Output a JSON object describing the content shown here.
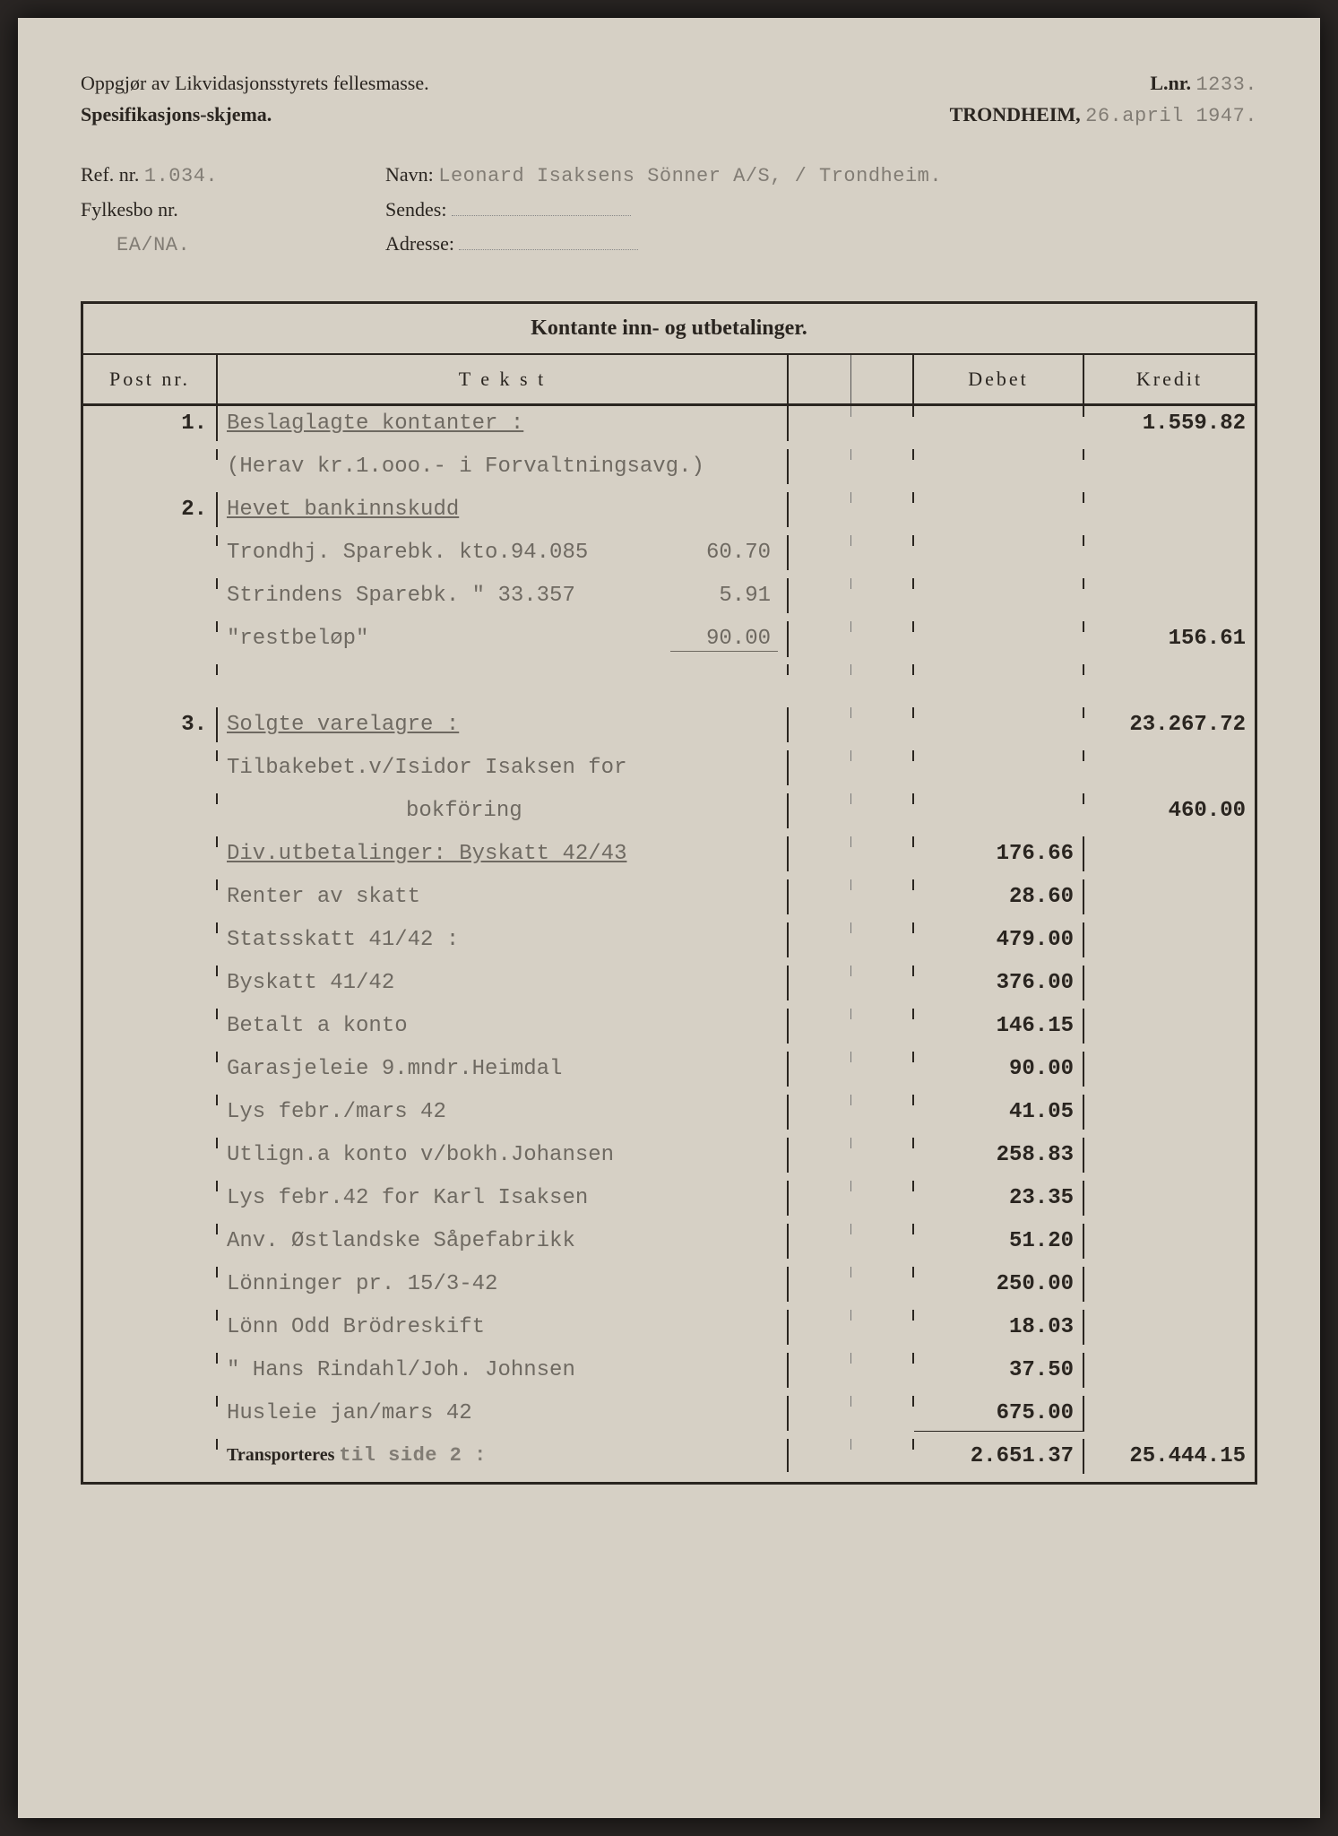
{
  "header": {
    "line1_left": "Oppgjør av Likvidasjonsstyrets fellesmasse.",
    "lnr_label": "L.nr.",
    "lnr_value": "1233.",
    "line2_left": "Spesifikasjons-skjema.",
    "city": "TRONDHEIM,",
    "date": "26.april 1947."
  },
  "ref": {
    "refnr_label": "Ref. nr.",
    "refnr_value": "1.034.",
    "navn_label": "Navn:",
    "navn_value": "Leonard Isaksens Sönner A/S, / Trondheim.",
    "fylkesbo_label": "Fylkesbo nr.",
    "fylkesbo_value": "EA/NA.",
    "sendes_label": "Sendes:",
    "adresse_label": "Adresse:"
  },
  "ledger": {
    "title": "Kontante inn- og utbetalinger.",
    "col_post": "Post nr.",
    "col_tekst": "T e k s t",
    "col_debet": "Debet",
    "col_kredit": "Kredit",
    "rows": [
      {
        "post": "1.",
        "tekst": "Beslaglagte kontanter :",
        "underline": true,
        "debet": "",
        "kredit": "1.559.82"
      },
      {
        "post": "",
        "tekst": "(Herav kr.1.ooo.- i Forvaltningsavg.)",
        "debet": "",
        "kredit": ""
      },
      {
        "post": "2.",
        "tekst": "Hevet bankinnskudd",
        "underline": true,
        "debet": "",
        "kredit": ""
      },
      {
        "post": "",
        "tekst": "Trondhj. Sparebk. kto.94.085",
        "subnum": "60.70",
        "debet": "",
        "kredit": ""
      },
      {
        "post": "",
        "tekst": "Strindens Sparebk. \" 33.357",
        "subnum": "5.91",
        "debet": "",
        "kredit": ""
      },
      {
        "post": "",
        "tekst": "\"restbeløp\"",
        "subnum": "90.00",
        "sum_underline": true,
        "debet": "",
        "kredit": "156.61"
      },
      {
        "post": "",
        "tekst": "",
        "debet": "",
        "kredit": ""
      },
      {
        "post": "3.",
        "tekst": "Solgte varelagre :",
        "underline": true,
        "debet": "",
        "kredit": "23.267.72"
      },
      {
        "post": "",
        "tekst": "Tilbakebet.v/Isidor Isaksen for",
        "debet": "",
        "kredit": ""
      },
      {
        "post": "",
        "tekst": "bokföring",
        "indent": 2,
        "debet": "",
        "kredit": "460.00"
      },
      {
        "post": "",
        "tekst": "Div.utbetalinger: Byskatt 42/43",
        "underline": true,
        "debet": "176.66",
        "kredit": ""
      },
      {
        "post": "",
        "tekst": "Renter av skatt",
        "debet": "28.60",
        "kredit": ""
      },
      {
        "post": "",
        "tekst": "Statsskatt 41/42 :",
        "debet": "479.00",
        "kredit": ""
      },
      {
        "post": "",
        "tekst": "Byskatt 41/42",
        "debet": "376.00",
        "kredit": ""
      },
      {
        "post": "",
        "tekst": "Betalt a konto",
        "debet": "146.15",
        "kredit": ""
      },
      {
        "post": "",
        "tekst": "Garasjeleie 9.mndr.Heimdal",
        "debet": "90.00",
        "kredit": ""
      },
      {
        "post": "",
        "tekst": "Lys febr./mars 42",
        "debet": "41.05",
        "kredit": ""
      },
      {
        "post": "",
        "tekst": "Utlign.a konto v/bokh.Johansen",
        "debet": "258.83",
        "kredit": ""
      },
      {
        "post": "",
        "tekst": "Lys febr.42 for Karl Isaksen",
        "debet": "23.35",
        "kredit": ""
      },
      {
        "post": "",
        "tekst": "Anv. Østlandske Såpefabrikk",
        "debet": "51.20",
        "kredit": ""
      },
      {
        "post": "",
        "tekst": "Lönninger pr. 15/3-42",
        "debet": "250.00",
        "kredit": ""
      },
      {
        "post": "",
        "tekst": "Lönn Odd Brödreskift",
        "debet": "18.03",
        "kredit": ""
      },
      {
        "post": "",
        "tekst": "\" Hans Rindahl/Joh. Johnsen",
        "debet": "37.50",
        "kredit": ""
      },
      {
        "post": "",
        "tekst": "Husleie jan/mars 42",
        "debet": "675.00",
        "sum_underline_debet": true,
        "kredit": ""
      }
    ],
    "transport": {
      "label": "Transporteres",
      "extra": "til side 2 :",
      "debet": "2.651.37",
      "kredit": "25.444.15"
    }
  },
  "style": {
    "paper_bg": "#d6d0c5",
    "ink": "#2a2520",
    "typed_ink": "#4a4540"
  }
}
